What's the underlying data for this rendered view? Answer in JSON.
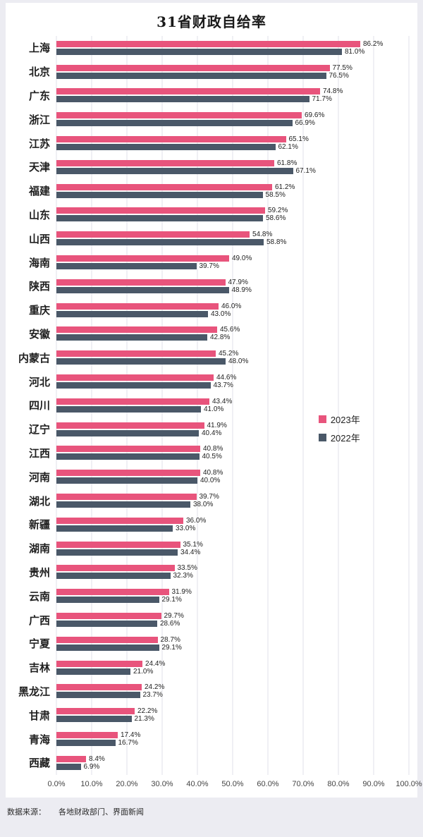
{
  "title": "31省财政自给率",
  "footer": {
    "source_label": "数据来源：",
    "source_text": "各地财政部门、界面新闻"
  },
  "chart_data": {
    "type": "bar",
    "orientation": "horizontal",
    "title": "31省财政自给率",
    "xlabel": "",
    "ylabel": "",
    "xlim": [
      0,
      100
    ],
    "grid": true,
    "legend_position": "right-middle",
    "x_ticks": [
      "0.0%",
      "10.0%",
      "20.0%",
      "30.0%",
      "40.0%",
      "50.0%",
      "60.0%",
      "70.0%",
      "80.0%",
      "90.0%",
      "100.0%"
    ],
    "categories": [
      "上海",
      "北京",
      "广东",
      "浙江",
      "江苏",
      "天津",
      "福建",
      "山东",
      "山西",
      "海南",
      "陕西",
      "重庆",
      "安徽",
      "内蒙古",
      "河北",
      "四川",
      "辽宁",
      "江西",
      "河南",
      "湖北",
      "新疆",
      "湖南",
      "贵州",
      "云南",
      "广西",
      "宁夏",
      "吉林",
      "黑龙江",
      "甘肃",
      "青海",
      "西藏"
    ],
    "series": [
      {
        "name": "2023年",
        "color": "#e8547c",
        "values": [
          86.2,
          77.5,
          74.8,
          69.6,
          65.1,
          61.8,
          61.2,
          59.2,
          54.8,
          49.0,
          47.9,
          46.0,
          45.6,
          45.2,
          44.6,
          43.4,
          41.9,
          40.8,
          40.8,
          39.7,
          36.0,
          35.1,
          33.5,
          31.9,
          29.7,
          28.7,
          24.4,
          24.2,
          22.2,
          17.4,
          8.4
        ]
      },
      {
        "name": "2022年",
        "color": "#4a5868",
        "values": [
          81.0,
          76.5,
          71.7,
          66.9,
          62.1,
          67.1,
          58.5,
          58.6,
          58.8,
          39.7,
          48.9,
          43.0,
          42.8,
          48.0,
          43.7,
          41.0,
          40.4,
          40.5,
          40.0,
          38.0,
          33.0,
          34.4,
          32.3,
          29.1,
          28.6,
          29.1,
          21.0,
          23.7,
          21.3,
          16.7,
          6.9
        ]
      }
    ]
  }
}
